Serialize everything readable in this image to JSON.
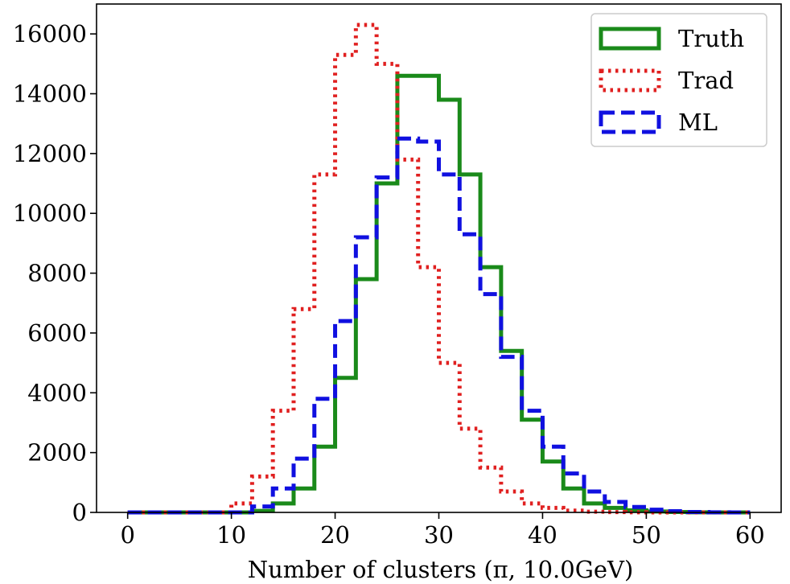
{
  "chart_data": {
    "type": "histogram",
    "xlabel": "Number of clusters (π, 10.0GeV)",
    "ylabel": "",
    "xlim": [
      -3,
      63
    ],
    "ylim": [
      0,
      17000
    ],
    "x_ticks": [
      0,
      10,
      20,
      30,
      40,
      50,
      60
    ],
    "y_ticks": [
      0,
      2000,
      4000,
      6000,
      8000,
      10000,
      12000,
      14000,
      16000
    ],
    "legend_position": "top-right",
    "grid": false,
    "bin_edges": [
      0,
      2,
      4,
      6,
      8,
      10,
      12,
      14,
      16,
      18,
      20,
      22,
      24,
      26,
      28,
      30,
      32,
      34,
      36,
      38,
      40,
      42,
      44,
      46,
      48,
      50,
      52,
      54,
      56,
      58,
      60
    ],
    "series": [
      {
        "name": "Truth",
        "color": "#1a8a1a",
        "style": "solid",
        "values": [
          0,
          0,
          0,
          0,
          0,
          0,
          50,
          300,
          800,
          2200,
          4500,
          7800,
          11000,
          14600,
          14600,
          13800,
          11300,
          8200,
          5400,
          3100,
          1700,
          800,
          300,
          150,
          70,
          30,
          15,
          5,
          0,
          0
        ]
      },
      {
        "name": "Trad",
        "color": "#e02020",
        "style": "dotted",
        "values": [
          0,
          0,
          0,
          0,
          0,
          300,
          1200,
          3400,
          6800,
          11300,
          15300,
          16300,
          15000,
          11800,
          8200,
          5000,
          2800,
          1500,
          700,
          300,
          150,
          60,
          25,
          10,
          5,
          0,
          0,
          0,
          0,
          0
        ]
      },
      {
        "name": "ML",
        "color": "#1010e0",
        "style": "dashed",
        "values": [
          0,
          0,
          0,
          0,
          0,
          0,
          200,
          800,
          1800,
          3800,
          6400,
          9200,
          11200,
          12500,
          12400,
          11300,
          9300,
          7300,
          5200,
          3400,
          2200,
          1300,
          700,
          350,
          180,
          90,
          40,
          15,
          5,
          0
        ]
      }
    ]
  }
}
